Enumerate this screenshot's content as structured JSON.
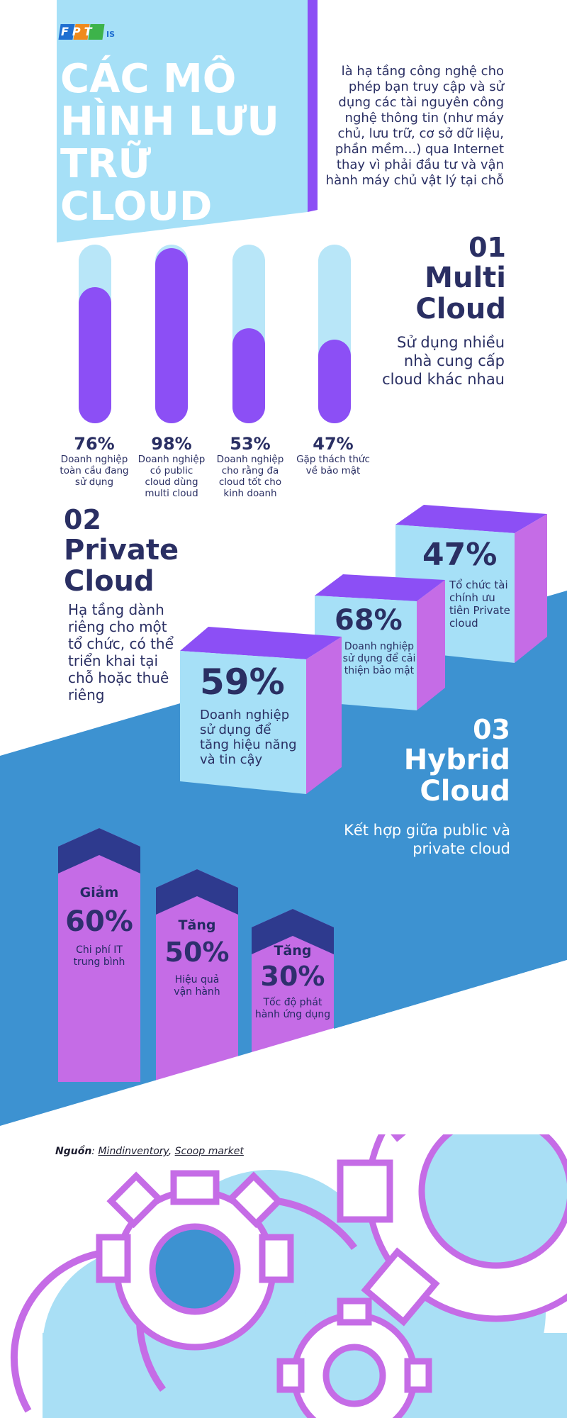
{
  "brand": {
    "logo_text": "FPT",
    "logo_suffix": "IS"
  },
  "header": {
    "title_lines": [
      "CÁC MÔ",
      "HÌNH LƯU",
      "TRỮ CLOUD"
    ],
    "intro_lines": [
      "là hạ tầng công nghệ cho",
      "phép bạn truy cập và sử",
      "dụng các tài nguyên công",
      "nghệ thông tin (như máy",
      "chủ, lưu trữ, cơ sở dữ liệu,",
      "phần mềm...) qua Internet",
      "thay vì phải đầu tư và vận",
      "hành máy chủ vật lý tại chỗ"
    ]
  },
  "multi_cloud": {
    "number": "01",
    "title_lines": [
      "Multi",
      "Cloud"
    ],
    "desc_lines": [
      "Sử dụng nhiều",
      "nhà cung cấp",
      "cloud khác nhau"
    ],
    "stats": [
      {
        "pct": "76%",
        "value": 76,
        "label_lines": [
          "Doanh nghiệp",
          "toàn cầu đang",
          "sử dụng"
        ]
      },
      {
        "pct": "98%",
        "value": 98,
        "label_lines": [
          "Doanh nghiệp",
          "có public",
          "cloud dùng",
          "multi cloud"
        ]
      },
      {
        "pct": "53%",
        "value": 53,
        "label_lines": [
          "Doanh nghiệp",
          "cho rằng đa",
          "cloud tốt cho",
          "kinh doanh"
        ]
      },
      {
        "pct": "47%",
        "value": 47,
        "label_lines": [
          "Gặp thách thức",
          "về bảo mật"
        ]
      }
    ]
  },
  "private_cloud": {
    "number": "02",
    "title_lines": [
      "Private",
      "Cloud"
    ],
    "desc_lines": [
      "Hạ tầng dành",
      "riêng cho một",
      "tổ chức, có thể",
      "triển khai tại",
      "chỗ hoặc thuê",
      "riêng"
    ],
    "stats": [
      {
        "pct": "59%",
        "label_lines": [
          "Doanh nghiệp",
          "sử dụng để",
          "tăng hiệu năng",
          "và tin cậy"
        ]
      },
      {
        "pct": "68%",
        "label_lines": [
          "Doanh nghiệp",
          "sử dụng để cải",
          "thiện bảo mật"
        ]
      },
      {
        "pct": "47%",
        "label_lines": [
          "Tổ chức tài",
          "chính ưu",
          "tiên Private",
          "cloud"
        ]
      }
    ]
  },
  "hybrid_cloud": {
    "number": "03",
    "title_lines": [
      "Hybrid",
      "Cloud"
    ],
    "desc_lines": [
      "Kết hợp giữa public và",
      "private cloud"
    ],
    "stats": [
      {
        "verb": "Giảm",
        "pct": "60%",
        "label_lines": [
          "Chi phí IT",
          "trung bình"
        ]
      },
      {
        "verb": "Tăng",
        "pct": "50%",
        "label_lines": [
          "Hiệu quả",
          "vận hành"
        ]
      },
      {
        "verb": "Tăng",
        "pct": "30%",
        "label_lines": [
          "Tốc độ phát",
          "hành ứng dụng"
        ]
      }
    ]
  },
  "source": {
    "label": "Nguồn",
    "links": [
      "Mindinventory",
      "Scoop market"
    ]
  },
  "colors": {
    "navy": "#2a2f63",
    "purple": "#8c4ff5",
    "violet": "#c56ce6",
    "light_blue": "#a6e0f7",
    "blue": "#3d92d1",
    "dark_arrow": "#2e3a8e"
  }
}
